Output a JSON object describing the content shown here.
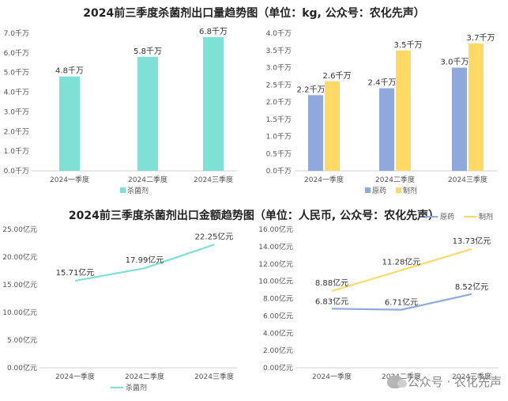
{
  "titles": {
    "top": "2024前三季度杀菌剂出口量趋势图（单位：kg, 公众号：农化先声）",
    "bottom": "2024前三季度杀菌剂出口金额趋势图（单位：人民币, 公众号：农化先声）"
  },
  "watermark": "公众号 · 农化先声",
  "colors": {
    "teal": "#7fe0d6",
    "blue": "#8fa9dc",
    "yellow": "#ffd966",
    "grid": "#e6e6e6",
    "tick": "#555555"
  },
  "chart_data": [
    {
      "type": "bar",
      "categories": [
        "2024一季度",
        "2024二季度",
        "2024三季度"
      ],
      "series": [
        {
          "name": "杀菌剂",
          "values": [
            4.8,
            5.8,
            6.8
          ],
          "labels": [
            "4.8千万",
            "5.8千万",
            "6.8千万"
          ]
        }
      ],
      "yticks": [
        "0.0千万",
        "1.0千万",
        "2.0千万",
        "3.0千万",
        "4.0千万",
        "5.0千万",
        "6.0千万",
        "7.0千万"
      ],
      "ylim": [
        0,
        7
      ],
      "legend": "bottom",
      "grid": false
    },
    {
      "type": "bar",
      "categories": [
        "2024一季度",
        "2024二季度",
        "2024三季度"
      ],
      "series": [
        {
          "name": "原药",
          "values": [
            2.2,
            2.4,
            3.0
          ],
          "labels": [
            "2.2千万",
            "2.4千万",
            "3.0千万"
          ]
        },
        {
          "name": "制剂",
          "values": [
            2.6,
            3.5,
            3.7
          ],
          "labels": [
            "2.6千万",
            "3.5千万",
            "3.7千万"
          ]
        }
      ],
      "yticks": [
        "0.0千万",
        "0.5千万",
        "1.0千万",
        "1.5千万",
        "2.0千万",
        "2.5千万",
        "3.0千万",
        "3.5千万",
        "4.0千万"
      ],
      "ylim": [
        0,
        4
      ],
      "legend": "bottom",
      "grid": false
    },
    {
      "type": "line",
      "categories": [
        "2024一季度",
        "2024二季度",
        "2024三季度"
      ],
      "series": [
        {
          "name": "杀菌剂",
          "values": [
            15.71,
            17.99,
            22.25
          ],
          "labels": [
            "15.71亿元",
            "17.99亿元",
            "22.25亿元"
          ]
        }
      ],
      "yticks": [
        "0.00亿元",
        "5.00亿元",
        "10.00亿元",
        "15.00亿元",
        "20.00亿元",
        "25.00亿元"
      ],
      "ylim": [
        0,
        25
      ],
      "legend": "bottom",
      "grid": false
    },
    {
      "type": "line",
      "categories": [
        "2024一季度",
        "2024二季度",
        "2024三季度"
      ],
      "series": [
        {
          "name": "原药",
          "values": [
            6.83,
            6.71,
            8.52
          ],
          "labels": [
            "6.83亿元",
            "6.71亿元",
            "8.52亿元"
          ]
        },
        {
          "name": "制剂",
          "values": [
            8.88,
            11.28,
            13.73
          ],
          "labels": [
            "8.88亿元",
            "11.28亿元",
            "13.73亿元"
          ]
        }
      ],
      "yticks": [
        "0.00亿元",
        "2.00亿元",
        "4.00亿元",
        "6.00亿元",
        "8.00亿元",
        "10.00亿元",
        "12.00亿元",
        "14.00亿元",
        "16.00亿元"
      ],
      "ylim": [
        0,
        16
      ],
      "legend": "top",
      "grid": false
    }
  ]
}
